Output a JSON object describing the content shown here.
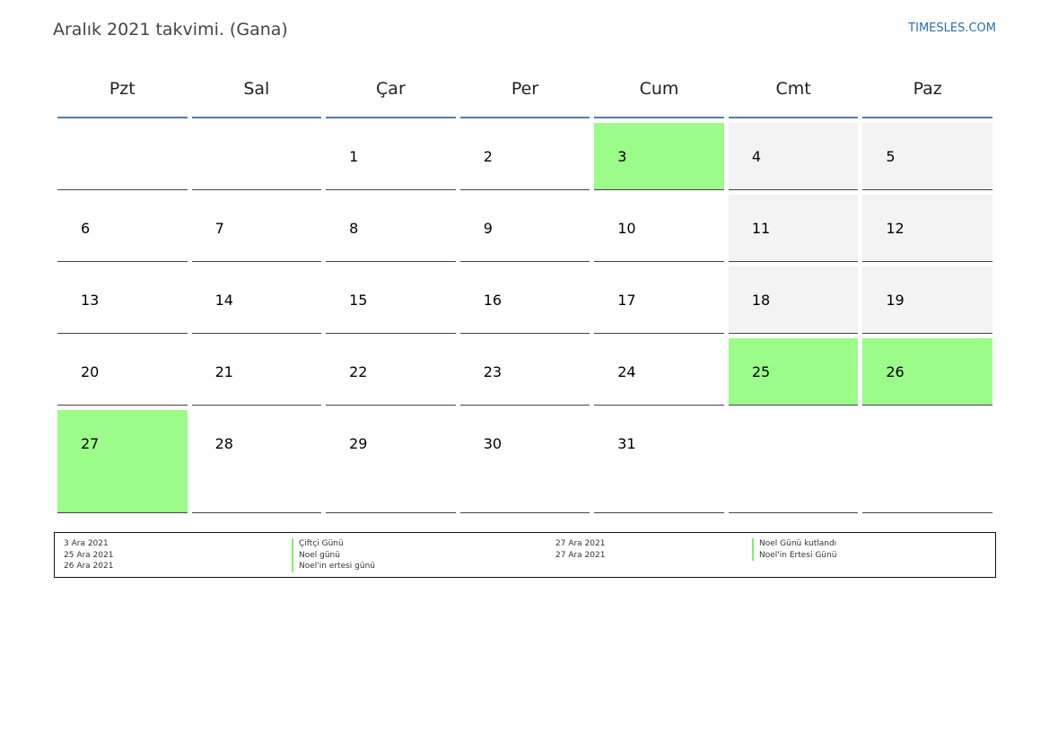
{
  "header": {
    "title": "Aralık 2021 takvimi. (Gana)",
    "site": "TIMESLES.COM"
  },
  "weekdays": [
    "Pzt",
    "Sal",
    "Çar",
    "Per",
    "Cum",
    "Cmt",
    "Paz"
  ],
  "colors": {
    "holiday": "#9bfc8a",
    "weekend": "#f3f3f3",
    "header_rule": "#5b7aa0",
    "site_link": "#2a6fb0"
  },
  "weeks": [
    [
      "",
      "",
      "1",
      "2",
      "3",
      "4",
      "5"
    ],
    [
      "6",
      "7",
      "8",
      "9",
      "10",
      "11",
      "12"
    ],
    [
      "13",
      "14",
      "15",
      "16",
      "17",
      "18",
      "19"
    ],
    [
      "20",
      "21",
      "22",
      "23",
      "24",
      "25",
      "26"
    ],
    [
      "27",
      "28",
      "29",
      "30",
      "31",
      "",
      ""
    ]
  ],
  "legend": {
    "left_dates": [
      "3 Ara 2021",
      "25 Ara 2021",
      "26 Ara 2021"
    ],
    "left_names": [
      "Çiftçi Günü",
      "Noel günü",
      "Noel'in ertesi günü"
    ],
    "right_dates": [
      "27 Ara 2021",
      "27 Ara 2021"
    ],
    "right_names": [
      "Noel Günü kutlandı",
      "Noel'in Ertesi Günü"
    ]
  }
}
